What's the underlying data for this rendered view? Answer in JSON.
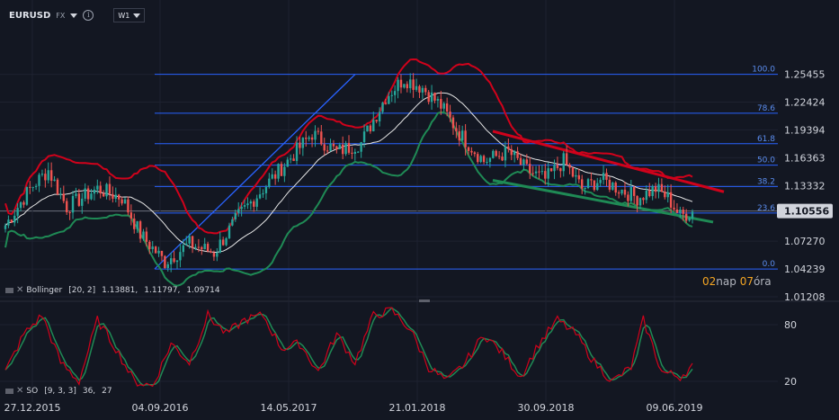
{
  "header": {
    "symbol": "EURUSD",
    "exchange": "FX",
    "timeframe": "W1"
  },
  "indicator_legend": {
    "bollinger": {
      "name": "Bollinger",
      "params": "[20, 2]",
      "v1": "1.13881,",
      "v2": "1.11797,",
      "v3": "1.09714"
    },
    "stochastic": {
      "name": "SO",
      "params": "[9, 3, 3]",
      "v1": "36,",
      "v2": "27"
    }
  },
  "time_left": {
    "a": "02",
    "a_unit": "nap",
    "b": "07",
    "b_unit": "óra"
  },
  "chart_data": {
    "type": "candlestick",
    "price_axis": {
      "ticks": [
        "1.25455",
        "1.22424",
        "1.19394",
        "1.16363",
        "1.13332",
        "1.10556",
        "1.07270",
        "1.04239",
        "1.01208"
      ],
      "current": "1.10556",
      "range": [
        1.0121,
        1.2845
      ]
    },
    "oscillator_axis": {
      "ticks": [
        "80",
        "20"
      ],
      "range": [
        0,
        100
      ]
    },
    "x_ticks": [
      "27.12.2015",
      "04.09.2016",
      "14.05.2017",
      "21.01.2018",
      "30.09.2018",
      "09.06.2019"
    ],
    "fibonacci": [
      {
        "label": "100.0",
        "price": 1.25455
      },
      {
        "label": "78.6",
        "price": 1.2121
      },
      {
        "label": "61.8",
        "price": 1.1789
      },
      {
        "label": "50.0",
        "price": 1.1555
      },
      {
        "label": "38.2",
        "price": 1.1322
      },
      {
        "label": "23.6",
        "price": 1.1033
      },
      {
        "label": "0.0",
        "price": 1.0424
      }
    ],
    "price_path": [
      [
        0,
        1.09
      ],
      [
        8,
        1.13
      ],
      [
        14,
        1.15
      ],
      [
        20,
        1.11
      ],
      [
        30,
        1.13
      ],
      [
        38,
        1.12
      ],
      [
        44,
        1.08
      ],
      [
        52,
        1.05
      ],
      [
        60,
        1.07
      ],
      [
        68,
        1.06
      ],
      [
        76,
        1.1
      ],
      [
        84,
        1.13
      ],
      [
        92,
        1.16
      ],
      [
        100,
        1.19
      ],
      [
        108,
        1.17
      ],
      [
        116,
        1.18
      ],
      [
        124,
        1.23
      ],
      [
        130,
        1.25
      ],
      [
        136,
        1.24
      ],
      [
        142,
        1.22
      ],
      [
        148,
        1.19
      ],
      [
        156,
        1.16
      ],
      [
        164,
        1.17
      ],
      [
        170,
        1.15
      ],
      [
        176,
        1.14
      ],
      [
        182,
        1.16
      ],
      [
        188,
        1.13
      ],
      [
        194,
        1.14
      ],
      [
        200,
        1.13
      ],
      [
        206,
        1.12
      ],
      [
        212,
        1.13
      ],
      [
        216,
        1.12
      ],
      [
        220,
        1.1
      ],
      [
        224,
        1.105
      ]
    ],
    "oscillator_path": [
      [
        0,
        30
      ],
      [
        6,
        70
      ],
      [
        12,
        90
      ],
      [
        18,
        40
      ],
      [
        24,
        20
      ],
      [
        30,
        85
      ],
      [
        36,
        55
      ],
      [
        42,
        20
      ],
      [
        48,
        15
      ],
      [
        54,
        60
      ],
      [
        60,
        40
      ],
      [
        66,
        90
      ],
      [
        72,
        70
      ],
      [
        78,
        85
      ],
      [
        84,
        90
      ],
      [
        90,
        55
      ],
      [
        96,
        60
      ],
      [
        102,
        30
      ],
      [
        108,
        70
      ],
      [
        114,
        40
      ],
      [
        120,
        90
      ],
      [
        126,
        95
      ],
      [
        132,
        75
      ],
      [
        138,
        35
      ],
      [
        144,
        20
      ],
      [
        150,
        40
      ],
      [
        156,
        70
      ],
      [
        162,
        50
      ],
      [
        168,
        25
      ],
      [
        174,
        60
      ],
      [
        180,
        85
      ],
      [
        186,
        70
      ],
      [
        192,
        40
      ],
      [
        198,
        20
      ],
      [
        204,
        35
      ],
      [
        208,
        85
      ],
      [
        214,
        30
      ],
      [
        220,
        25
      ],
      [
        224,
        36
      ]
    ]
  }
}
